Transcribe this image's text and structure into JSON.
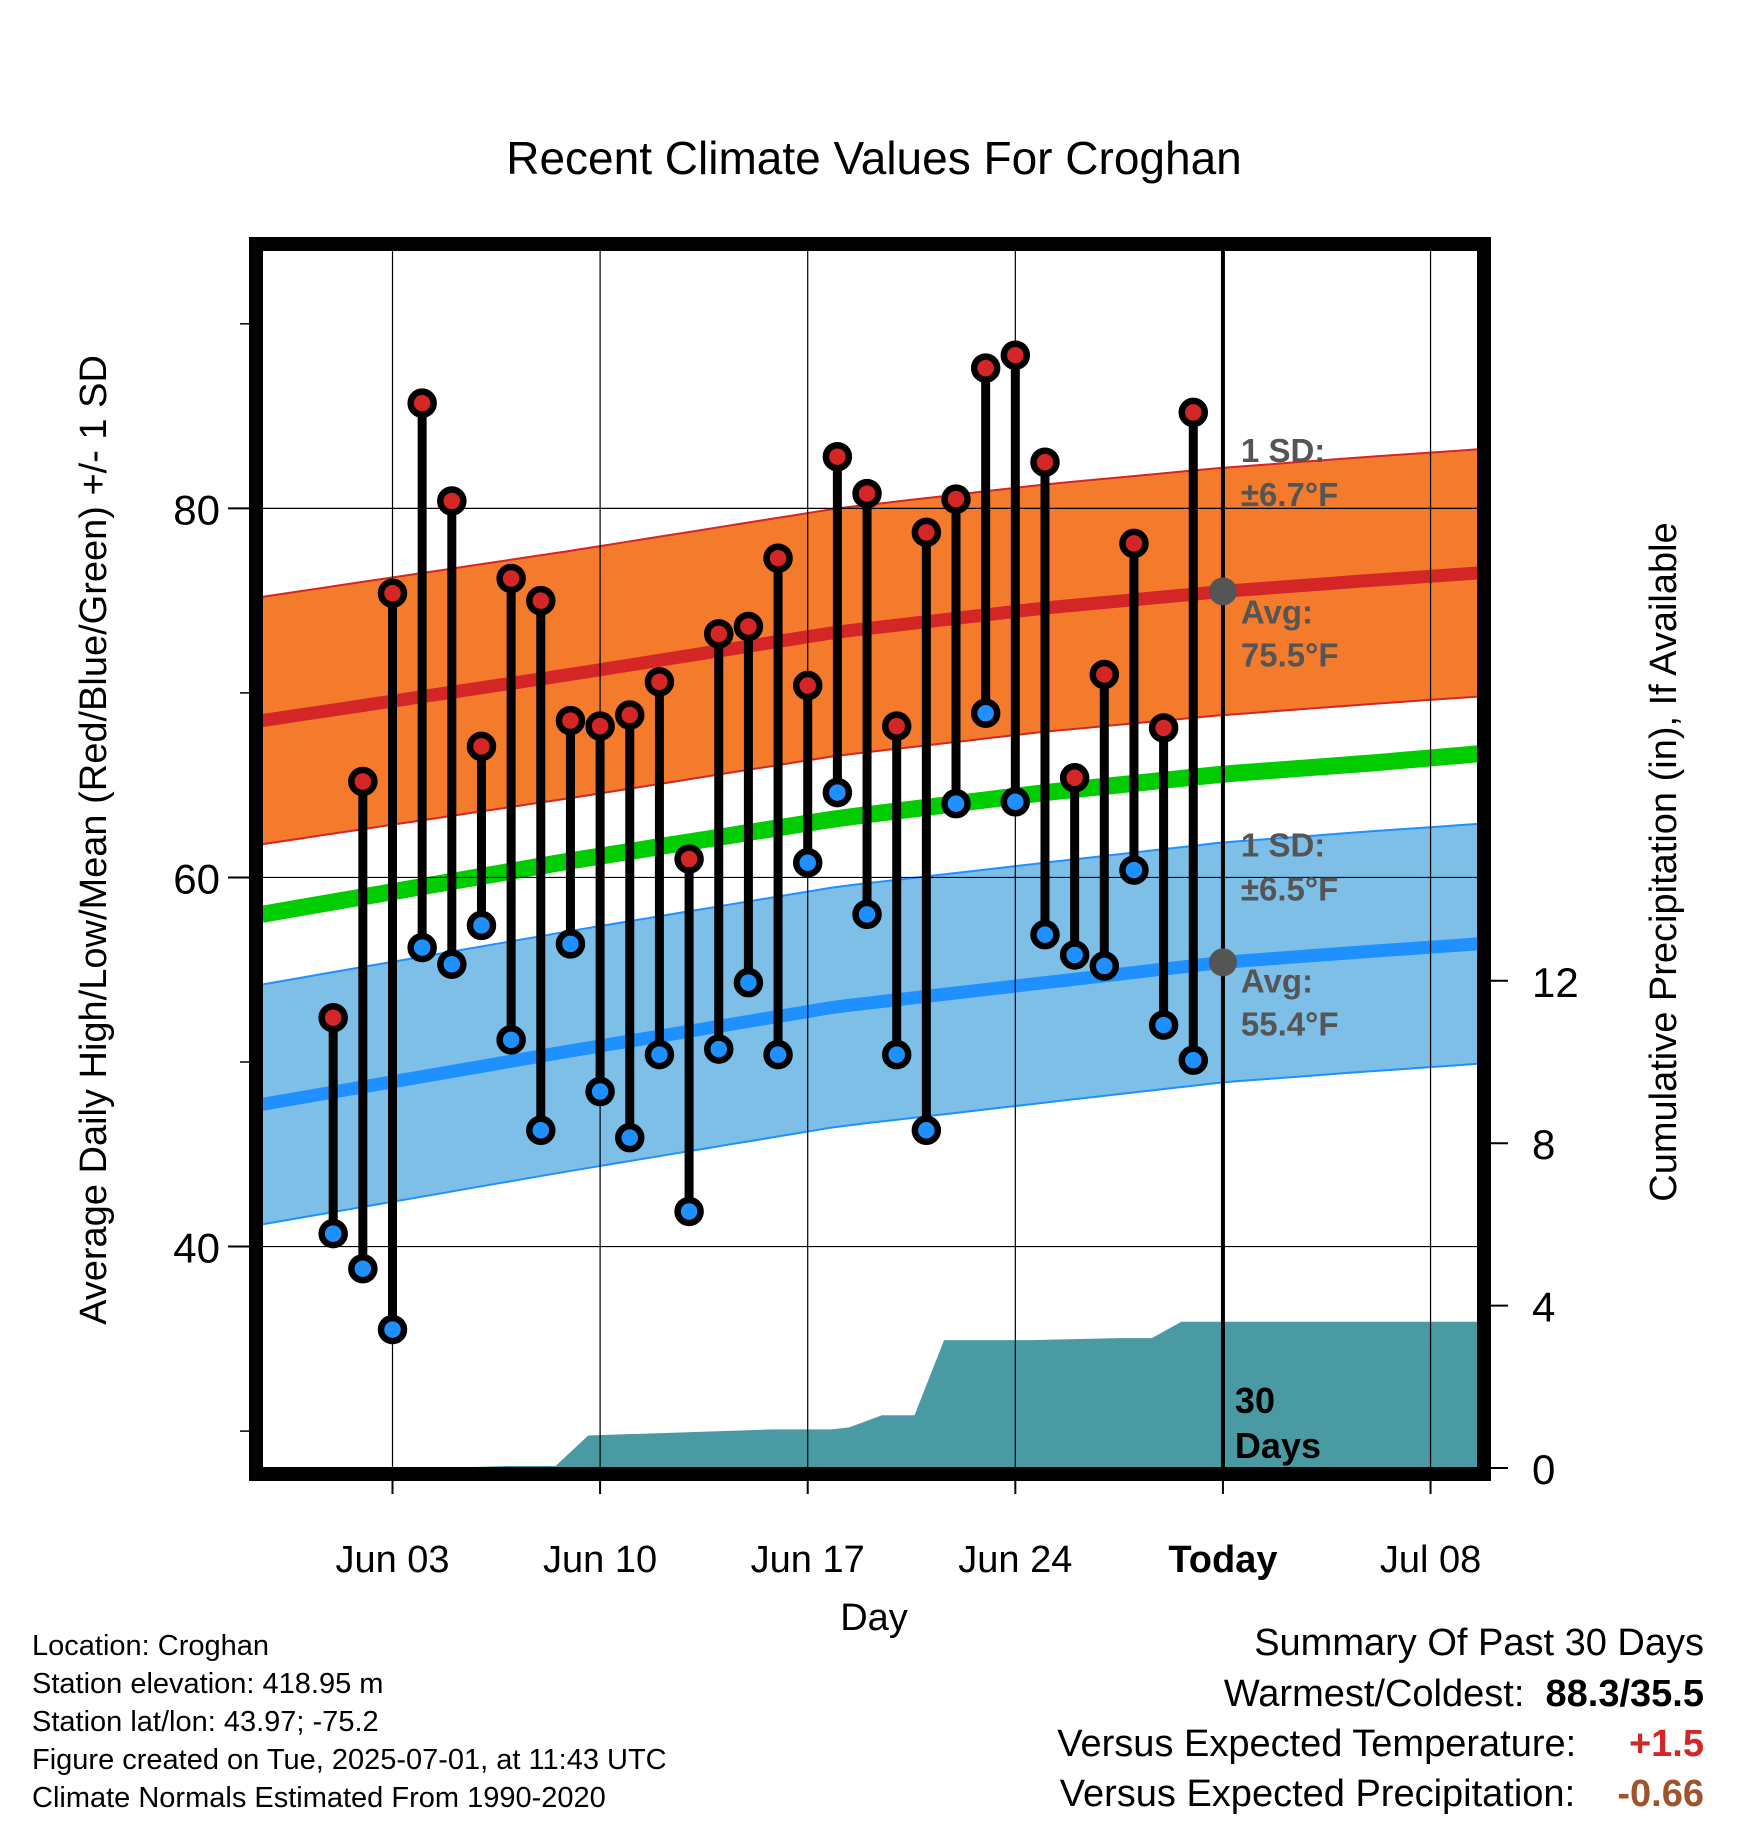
{
  "chart_data": {
    "type": "line",
    "title": "Recent Climate Values For Croghan",
    "xlabel": "Day",
    "ylabel": "Average Daily High/Low/Mean (Red/Blue/Green) +/- 1 SD",
    "y2label": "Cumulative Precipitation (in), If Available",
    "ylim": [
      28,
      94
    ],
    "y2lim": [
      0,
      30
    ],
    "xlim": [
      -2.4,
      38.6
    ],
    "x_ticks": [
      {
        "day": 2,
        "label": "Jun 03"
      },
      {
        "day": 9,
        "label": "Jun 10"
      },
      {
        "day": 16,
        "label": "Jun 17"
      },
      {
        "day": 23,
        "label": "Jun 24"
      },
      {
        "day": 30,
        "label": "Today"
      },
      {
        "day": 37,
        "label": "Jul 08"
      }
    ],
    "y_ticks": [
      "40",
      "60",
      "80"
    ],
    "y2_ticks": [
      "0",
      "4",
      "8",
      "12"
    ],
    "grid": true,
    "today_label": "30 Days",
    "days": [
      "Jun 01",
      "Jun 02",
      "Jun 03",
      "Jun 04",
      "Jun 05",
      "Jun 06",
      "Jun 07",
      "Jun 08",
      "Jun 09",
      "Jun 10",
      "Jun 11",
      "Jun 12",
      "Jun 13",
      "Jun 14",
      "Jun 15",
      "Jun 16",
      "Jun 17",
      "Jun 18",
      "Jun 19",
      "Jun 20",
      "Jun 21",
      "Jun 22",
      "Jun 23",
      "Jun 24",
      "Jun 25",
      "Jun 26",
      "Jun 27",
      "Jun 28",
      "Jun 29",
      "Jun 30"
    ],
    "daily_high": [
      52.4,
      65.2,
      75.4,
      85.7,
      80.4,
      67.1,
      76.2,
      75.0,
      68.5,
      68.2,
      68.8,
      70.6,
      61.0,
      73.2,
      73.6,
      77.3,
      70.4,
      82.8,
      80.8,
      68.2,
      78.7,
      80.5,
      87.6,
      88.3,
      82.5,
      65.4,
      71.0,
      78.1,
      68.1,
      85.2
    ],
    "daily_low": [
      40.7,
      38.8,
      35.5,
      56.2,
      55.3,
      57.4,
      51.2,
      46.3,
      56.4,
      48.4,
      45.9,
      50.4,
      41.9,
      50.7,
      54.3,
      50.4,
      60.8,
      64.6,
      58.0,
      50.4,
      46.3,
      64.0,
      68.9,
      64.1,
      56.9,
      55.8,
      55.2,
      60.4,
      52.0,
      50.1
    ],
    "expected_high_days": [
      -2.4,
      8,
      17,
      24,
      30,
      35,
      38.6
    ],
    "expected_high": [
      68.5,
      71.0,
      73.3,
      74.6,
      75.5,
      76.1,
      76.5
    ],
    "expected_high_sd": 6.7,
    "expected_low_days": [
      -2.4,
      8,
      17,
      24,
      30,
      35,
      38.6
    ],
    "expected_low": [
      47.7,
      50.6,
      53.0,
      54.3,
      55.4,
      56.0,
      56.4
    ],
    "expected_low_sd": 6.5,
    "expected_mean_days": [
      -2.4,
      8,
      17,
      24,
      30,
      35,
      38.6
    ],
    "expected_mean": [
      58.0,
      60.9,
      63.2,
      64.6,
      65.6,
      66.2,
      66.7
    ],
    "precip_days": [
      -2.4,
      3.8,
      5.8,
      6.8,
      7.5,
      8.6,
      14.8,
      16.8,
      17.4,
      18.5,
      19.6,
      20.6,
      23.5,
      26.5,
      27.6,
      28.6,
      38.6
    ],
    "precip_cum": [
      0,
      0,
      0.05,
      0.05,
      0.05,
      0.8,
      0.95,
      0.95,
      1.0,
      1.3,
      1.3,
      3.15,
      3.15,
      3.2,
      3.2,
      3.6,
      3.6
    ],
    "annotations": {
      "high_sd_label": "1 SD:",
      "high_sd_value": "±6.7°F",
      "high_avg_label": "Avg:",
      "high_avg_value": "75.5°F",
      "low_sd_label": "1 SD:",
      "low_sd_value": "±6.5°F",
      "low_avg_label": "Avg:",
      "low_avg_value": "55.4°F"
    },
    "colors": {
      "high_band": "#F47B2C",
      "high_line": "#D42626",
      "low_band": "#7DBFE6",
      "low_line": "#1E90FF",
      "mean_line": "#00CC00",
      "precip": "#4A9AA4",
      "high_dot": "#D42626",
      "low_dot": "#1E90FF",
      "annotation_text": "#555555"
    }
  },
  "info": {
    "location": "Location: Croghan",
    "elevation": "Station elevation: 418.95 m",
    "latlon": "Station lat/lon: 43.97; -75.2",
    "created": "Figure created on Tue, 2025-07-01, at 11:43 UTC",
    "normals": "Climate Normals Estimated From 1990-2020"
  },
  "summary": {
    "title": "Summary Of Past 30 Days",
    "warmest_coldest_label": "Warmest/Coldest:",
    "warmest_coldest_value": "88.3/35.5",
    "temp_label": "Versus Expected Temperature:",
    "temp_value": "+1.5",
    "temp_color": "#D42626",
    "precip_label": "Versus Expected Precipitation:",
    "precip_value": "-0.66",
    "precip_color": "#A0522D"
  }
}
